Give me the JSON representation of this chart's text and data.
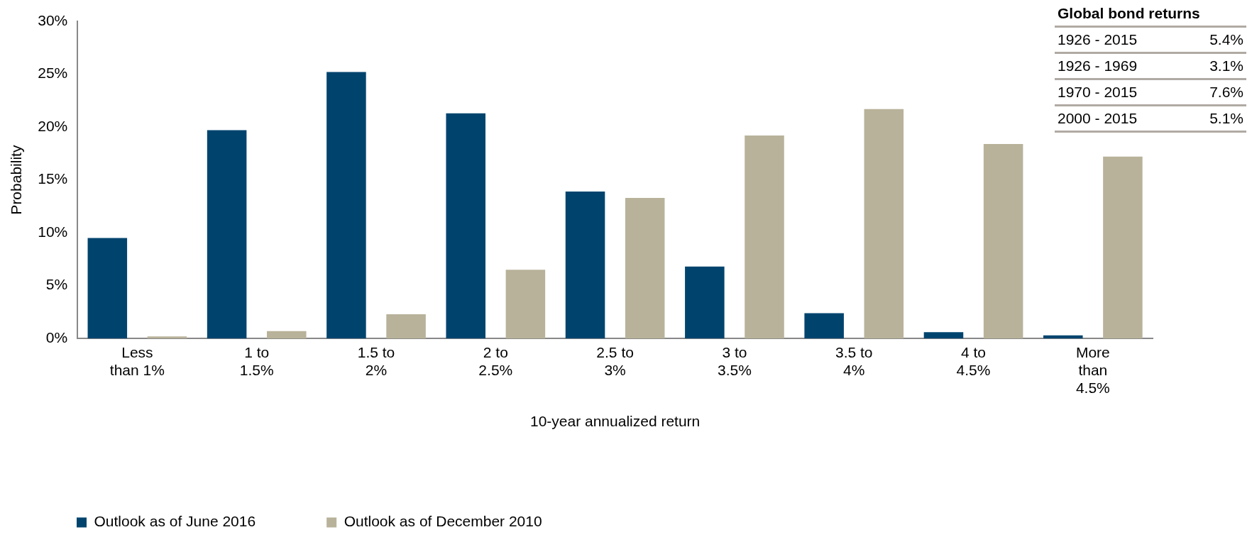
{
  "chart_data": {
    "type": "bar",
    "xlabel": "10-year annualized return",
    "ylabel": "Probability",
    "categories": [
      "Less than 1%",
      "1 to 1.5%",
      "1.5 to 2%",
      "2 to 2.5%",
      "2.5 to 3%",
      "3 to 3.5%",
      "3.5 to 4%",
      "4 to 4.5%",
      "More than 4.5%"
    ],
    "series": [
      {
        "name": "Outlook as of June 2016",
        "color": "#00446e",
        "values": [
          9.5,
          19.7,
          25.2,
          21.3,
          13.9,
          6.8,
          2.4,
          0.6,
          0.3
        ]
      },
      {
        "name": "Outlook as of December 2010",
        "color": "#b8b29a",
        "values": [
          0.2,
          0.7,
          2.3,
          6.5,
          13.3,
          19.2,
          21.7,
          18.4,
          17.2
        ]
      }
    ],
    "ylim": [
      0,
      30
    ],
    "yticks": [
      {
        "value": 0,
        "label": "0%"
      },
      {
        "value": 5,
        "label": "5%"
      },
      {
        "value": 10,
        "label": "10%"
      },
      {
        "value": 15,
        "label": "15%"
      },
      {
        "value": 20,
        "label": "20%"
      },
      {
        "value": 25,
        "label": "25%"
      },
      {
        "value": 30,
        "label": "30%"
      }
    ],
    "grid": false,
    "legend": "bottom left",
    "annotations": [
      "Global bond returns",
      "1926 - 2015",
      "5.4%",
      "1926 - 1969",
      "3.1%",
      "1970 - 2015",
      "7.6%",
      "2000 - 2015",
      "5.1%"
    ]
  }
}
